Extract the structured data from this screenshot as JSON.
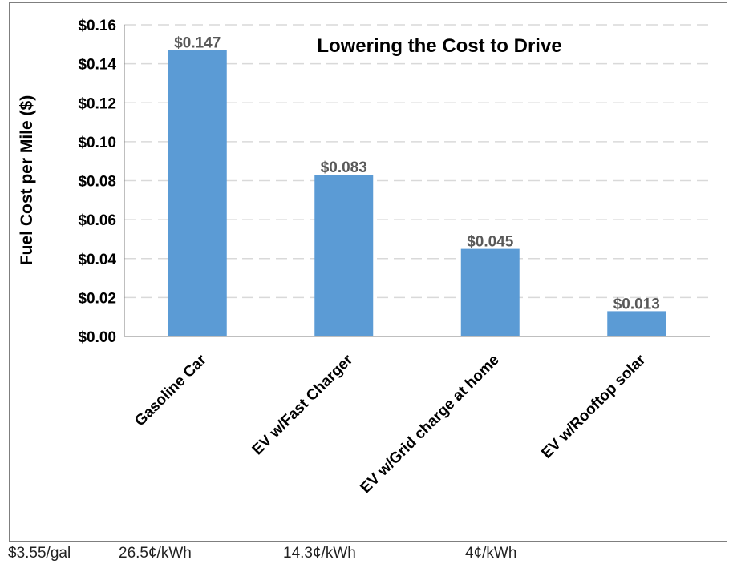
{
  "chart_data": {
    "type": "bar",
    "title": "Lowering the Cost to Drive",
    "xlabel": "",
    "ylabel": "Fuel Cost per Mile ($)",
    "ylim": [
      0,
      0.16
    ],
    "yticks": [
      "$0.00",
      "$0.02",
      "$0.04",
      "$0.06",
      "$0.08",
      "$0.10",
      "$0.12",
      "$0.14",
      "$0.16"
    ],
    "ytick_values": [
      0,
      0.02,
      0.04,
      0.06,
      0.08,
      0.1,
      0.12,
      0.14,
      0.16
    ],
    "categories": [
      "Gasoline Car",
      "EV w/Fast Charger",
      "EV w/Grid charge at home",
      "EV w/Rooftop solar"
    ],
    "values": [
      0.147,
      0.083,
      0.045,
      0.013
    ],
    "data_labels": [
      "$0.147",
      "$0.083",
      "$0.045",
      "$0.013"
    ],
    "grid": true,
    "bar_color": "#5b9bd5"
  },
  "price_notes": [
    "$3.55/gal",
    "26.5¢/kWh",
    "14.3¢/kWh",
    "4¢/kWh"
  ]
}
